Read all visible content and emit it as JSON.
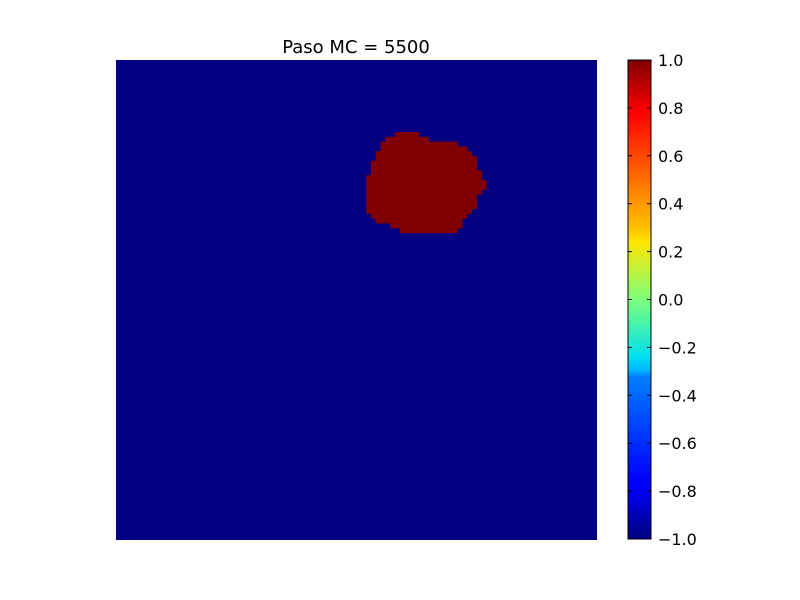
{
  "chart_data": {
    "type": "heatmap",
    "title": "Paso MC = 5500",
    "xlabel": "",
    "ylabel": "",
    "axes_visible": false,
    "colormap": "jet",
    "vmin": -1.0,
    "vmax": 1.0,
    "lattice_size": [
      100,
      100
    ],
    "background_value": -1.0,
    "cluster_value": 1.0,
    "cluster_cells": {
      "description_rows": "row index from top, inclusive column ranges (lattice units)",
      "rows": [
        {
          "row": 15,
          "cols": [
            58,
            62
          ]
        },
        {
          "row": 16,
          "cols": [
            56,
            64
          ]
        },
        {
          "row": 17,
          "cols": [
            55,
            70
          ]
        },
        {
          "row": 18,
          "cols": [
            55,
            72
          ]
        },
        {
          "row": 19,
          "cols": [
            54,
            73
          ]
        },
        {
          "row": 20,
          "cols": [
            54,
            74
          ]
        },
        {
          "row": 21,
          "cols": [
            53,
            74
          ]
        },
        {
          "row": 22,
          "cols": [
            53,
            74
          ]
        },
        {
          "row": 23,
          "cols": [
            53,
            75
          ]
        },
        {
          "row": 24,
          "cols": [
            52,
            75
          ]
        },
        {
          "row": 25,
          "cols": [
            52,
            76
          ]
        },
        {
          "row": 26,
          "cols": [
            52,
            76
          ]
        },
        {
          "row": 27,
          "cols": [
            52,
            75
          ]
        },
        {
          "row": 28,
          "cols": [
            52,
            74
          ]
        },
        {
          "row": 29,
          "cols": [
            52,
            74
          ]
        },
        {
          "row": 30,
          "cols": [
            52,
            74
          ]
        },
        {
          "row": 31,
          "cols": [
            52,
            73
          ]
        },
        {
          "row": 32,
          "cols": [
            53,
            72
          ]
        },
        {
          "row": 33,
          "cols": [
            54,
            71
          ]
        },
        {
          "row": 34,
          "cols": [
            57,
            71
          ]
        },
        {
          "row": 35,
          "cols": [
            59,
            70
          ]
        }
      ]
    },
    "colorbar": {
      "ticks": [
        1.0,
        0.8,
        0.6,
        0.4,
        0.2,
        0.0,
        -0.2,
        -0.4,
        -0.6,
        -0.8,
        -1.0
      ],
      "tick_labels": [
        "1.0",
        "0.8",
        "0.6",
        "0.4",
        "0.2",
        "0.0",
        "−0.2",
        "−0.4",
        "−0.6",
        "−0.8",
        "−1.0"
      ]
    },
    "colors": {
      "low": "#000080",
      "high": "#800000"
    }
  }
}
